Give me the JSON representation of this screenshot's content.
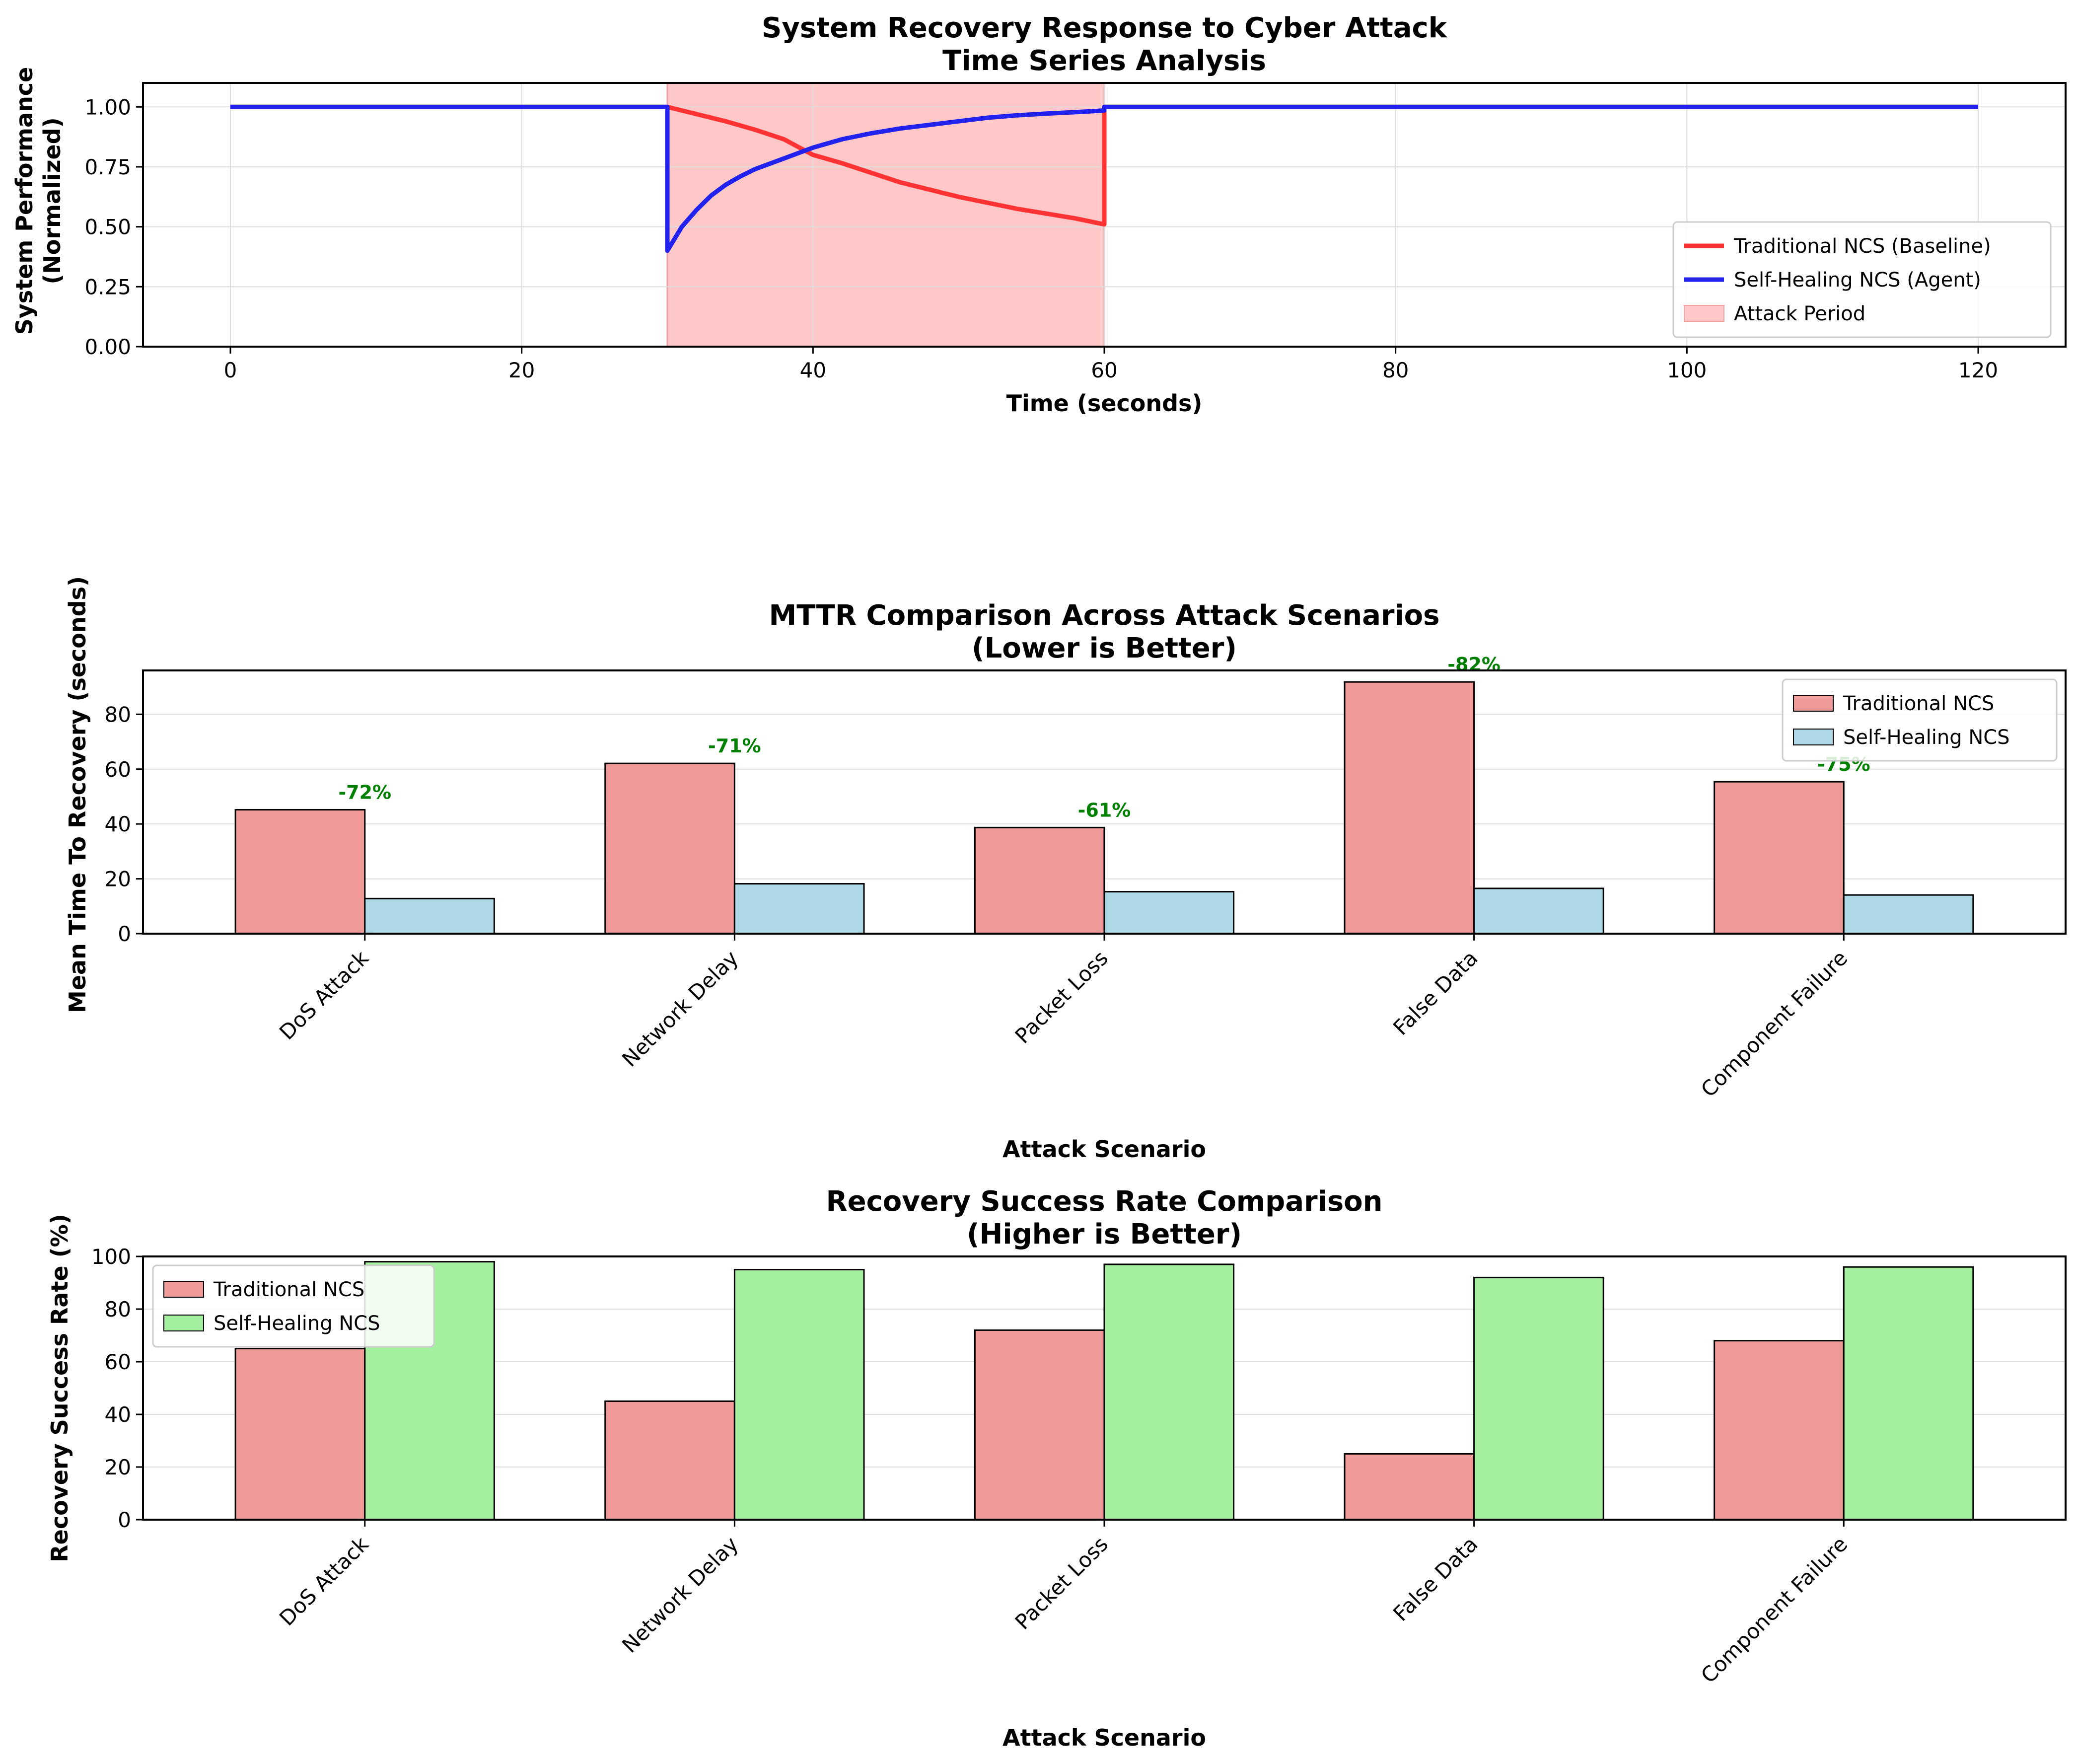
{
  "chart_data": [
    {
      "type": "line",
      "title": "System Recovery Response to Cyber Attack\nTime Series Analysis",
      "xlabel": "Time (seconds)",
      "ylabel": "System Performance\n(Normalized)",
      "xlim": [
        -6,
        126
      ],
      "ylim": [
        0,
        1.1
      ],
      "xticks": [
        "0",
        "20",
        "40",
        "60",
        "80",
        "100",
        "120"
      ],
      "yticks": [
        "0.00",
        "0.25",
        "0.50",
        "0.75",
        "1.00"
      ],
      "grid": true,
      "legend_position": "lower-right",
      "attack_period": {
        "label": "Attack Period",
        "start": 30,
        "end": 60,
        "color": "#ffc8c8"
      },
      "series": [
        {
          "name": "Traditional NCS (Baseline)",
          "color": "#ff3333",
          "points": [
            [
              0,
              1.0
            ],
            [
              30,
              1.0
            ],
            [
              30,
              1.0
            ],
            [
              32,
              0.97
            ],
            [
              34,
              0.94
            ],
            [
              36,
              0.905
            ],
            [
              38,
              0.865
            ],
            [
              40,
              0.8
            ],
            [
              42,
              0.765
            ],
            [
              44,
              0.725
            ],
            [
              46,
              0.685
            ],
            [
              48,
              0.655
            ],
            [
              50,
              0.625
            ],
            [
              52,
              0.6
            ],
            [
              54,
              0.575
            ],
            [
              56,
              0.555
            ],
            [
              58,
              0.535
            ],
            [
              60,
              0.51
            ],
            [
              60,
              1.0
            ],
            [
              120,
              1.0
            ]
          ]
        },
        {
          "name": "Self-Healing NCS (Agent)",
          "color": "#2222ee",
          "points": [
            [
              0,
              1.0
            ],
            [
              30,
              1.0
            ],
            [
              30,
              0.4
            ],
            [
              31,
              0.5
            ],
            [
              32,
              0.57
            ],
            [
              33,
              0.63
            ],
            [
              34,
              0.675
            ],
            [
              35,
              0.71
            ],
            [
              36,
              0.74
            ],
            [
              38,
              0.785
            ],
            [
              40,
              0.83
            ],
            [
              42,
              0.865
            ],
            [
              44,
              0.89
            ],
            [
              46,
              0.91
            ],
            [
              48,
              0.925
            ],
            [
              50,
              0.94
            ],
            [
              52,
              0.955
            ],
            [
              54,
              0.965
            ],
            [
              56,
              0.972
            ],
            [
              58,
              0.978
            ],
            [
              60,
              0.985
            ],
            [
              60,
              1.0
            ],
            [
              120,
              1.0
            ]
          ]
        }
      ]
    },
    {
      "type": "bar",
      "title": "MTTR Comparison Across Attack Scenarios\n(Lower is Better)",
      "xlabel": "Attack Scenario",
      "ylabel": "Mean Time To Recovery (seconds)",
      "ylim": [
        0,
        96
      ],
      "yticks": [
        "0",
        "20",
        "40",
        "60",
        "80"
      ],
      "grid": true,
      "legend_position": "upper-right",
      "categories": [
        "DoS Attack",
        "Network Delay",
        "Packet Loss",
        "False Data",
        "Component Failure"
      ],
      "series": [
        {
          "name": "Traditional NCS",
          "color": "#f09999",
          "values": [
            45.2,
            62.1,
            38.7,
            91.8,
            55.4
          ]
        },
        {
          "name": "Self-Healing NCS",
          "color": "#add8e6",
          "values": [
            12.8,
            18.2,
            15.3,
            16.5,
            14.1
          ]
        }
      ],
      "improvement_labels": [
        "-72%",
        "-71%",
        "-61%",
        "-82%",
        "-75%"
      ],
      "improvement_color": "#008000"
    },
    {
      "type": "bar",
      "title": "Recovery Success Rate Comparison\n(Higher is Better)",
      "xlabel": "Attack Scenario",
      "ylabel": "Recovery Success Rate (%)",
      "ylim": [
        0,
        100
      ],
      "yticks": [
        "0",
        "20",
        "40",
        "60",
        "80",
        "100"
      ],
      "grid": true,
      "legend_position": "upper-left",
      "categories": [
        "DoS Attack",
        "Network Delay",
        "Packet Loss",
        "False Data",
        "Component Failure"
      ],
      "series": [
        {
          "name": "Traditional NCS",
          "color": "#f09999",
          "values": [
            65,
            45,
            72,
            25,
            68
          ]
        },
        {
          "name": "Self-Healing NCS",
          "color": "#a3ef9f",
          "values": [
            98,
            95,
            97,
            92,
            96
          ]
        }
      ]
    }
  ]
}
